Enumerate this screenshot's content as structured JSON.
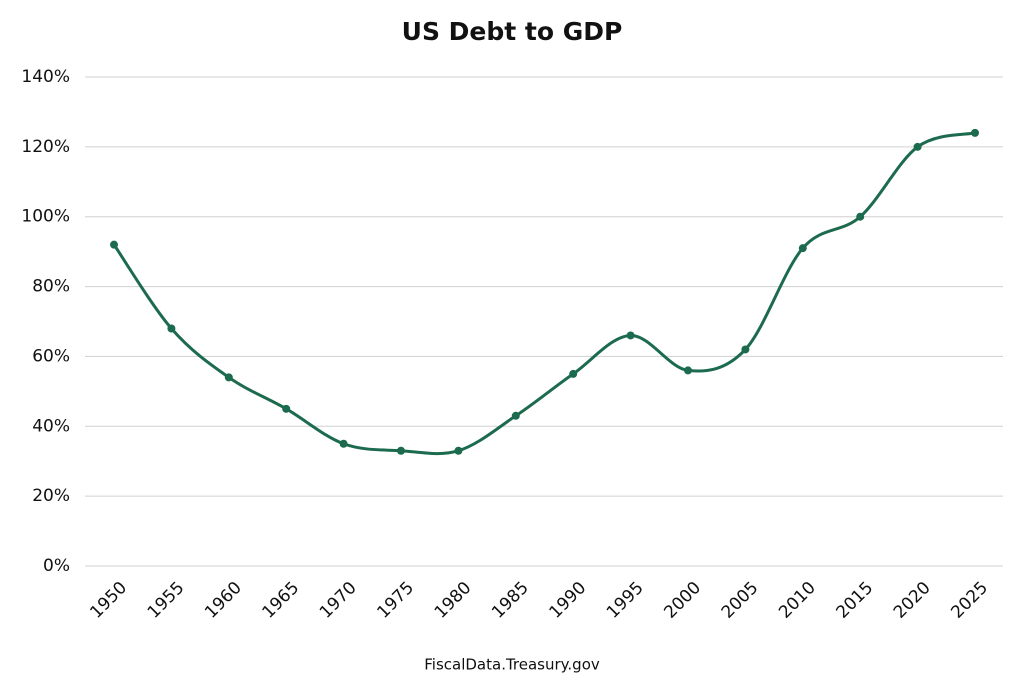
{
  "chart_data": {
    "type": "line",
    "title": "US Debt to GDP",
    "source": "FiscalData.Treasury.gov",
    "x": [
      1950,
      1955,
      1960,
      1965,
      1970,
      1975,
      1980,
      1985,
      1990,
      1995,
      2000,
      2005,
      2010,
      2015,
      2020,
      2025
    ],
    "values": [
      92,
      68,
      54,
      45,
      35,
      33,
      33,
      43,
      55,
      66,
      56,
      62,
      91,
      100,
      120,
      124
    ],
    "color": "#1d6b4f",
    "xlim": [
      1950,
      2025
    ],
    "xticks": [
      1950,
      1955,
      1960,
      1965,
      1970,
      1975,
      1980,
      1985,
      1990,
      1995,
      2000,
      2005,
      2010,
      2015,
      2020,
      2025
    ],
    "ylim": [
      0,
      140
    ],
    "yticks": [
      {
        "value": 0,
        "label": "0%"
      },
      {
        "value": 20,
        "label": "20%"
      },
      {
        "value": 40,
        "label": "40%"
      },
      {
        "value": 60,
        "label": "60%"
      },
      {
        "value": 80,
        "label": "80%"
      },
      {
        "value": 100,
        "label": "100%"
      },
      {
        "value": 120,
        "label": "120%"
      },
      {
        "value": 140,
        "label": "140%"
      }
    ],
    "grid": true,
    "smooth": true
  }
}
